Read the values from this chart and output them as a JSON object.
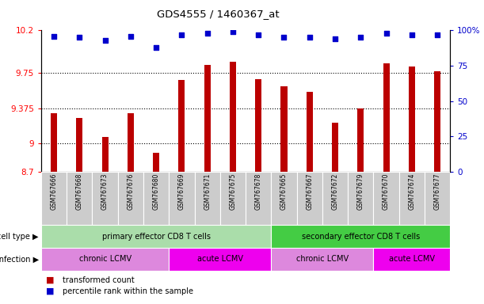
{
  "title": "GDS4555 / 1460367_at",
  "samples": [
    "GSM767666",
    "GSM767668",
    "GSM767673",
    "GSM767676",
    "GSM767680",
    "GSM767669",
    "GSM767671",
    "GSM767675",
    "GSM767678",
    "GSM767665",
    "GSM767667",
    "GSM767672",
    "GSM767679",
    "GSM767670",
    "GSM767674",
    "GSM767677"
  ],
  "bar_values": [
    9.32,
    9.27,
    9.07,
    9.32,
    8.9,
    9.67,
    9.83,
    9.87,
    9.68,
    9.61,
    9.55,
    9.22,
    9.375,
    9.85,
    9.82,
    9.77
  ],
  "percentile_values": [
    96,
    95,
    93,
    96,
    88,
    97,
    98,
    99,
    97,
    95,
    95,
    94,
    95,
    98,
    97,
    97
  ],
  "ylim_left": [
    8.7,
    10.2
  ],
  "ylim_right": [
    0,
    100
  ],
  "yticks_left": [
    8.7,
    9.0,
    9.375,
    9.75,
    10.2
  ],
  "yticks_right": [
    0,
    25,
    50,
    75,
    100
  ],
  "ytick_labels_left": [
    "8.7",
    "9",
    "9.375",
    "9.75",
    "10.2"
  ],
  "ytick_labels_right": [
    "0",
    "25",
    "50",
    "75",
    "100%"
  ],
  "grid_lines": [
    9.0,
    9.375,
    9.75
  ],
  "bar_color": "#bb0000",
  "dot_color": "#0000cc",
  "cell_type_groups": [
    {
      "label": "primary effector CD8 T cells",
      "start": 0,
      "end": 9,
      "color": "#aaddaa"
    },
    {
      "label": "secondary effector CD8 T cells",
      "start": 9,
      "end": 16,
      "color": "#44cc44"
    }
  ],
  "infection_groups": [
    {
      "label": "chronic LCMV",
      "start": 0,
      "end": 5,
      "color": "#dd88dd"
    },
    {
      "label": "acute LCMV",
      "start": 5,
      "end": 9,
      "color": "#ee00ee"
    },
    {
      "label": "chronic LCMV",
      "start": 9,
      "end": 13,
      "color": "#dd88dd"
    },
    {
      "label": "acute LCMV",
      "start": 13,
      "end": 16,
      "color": "#ee00ee"
    }
  ],
  "legend_red_label": "transformed count",
  "legend_blue_label": "percentile rank within the sample",
  "row_label_cell_type": "cell type",
  "row_label_infection": "infection",
  "tick_area_color": "#cccccc"
}
